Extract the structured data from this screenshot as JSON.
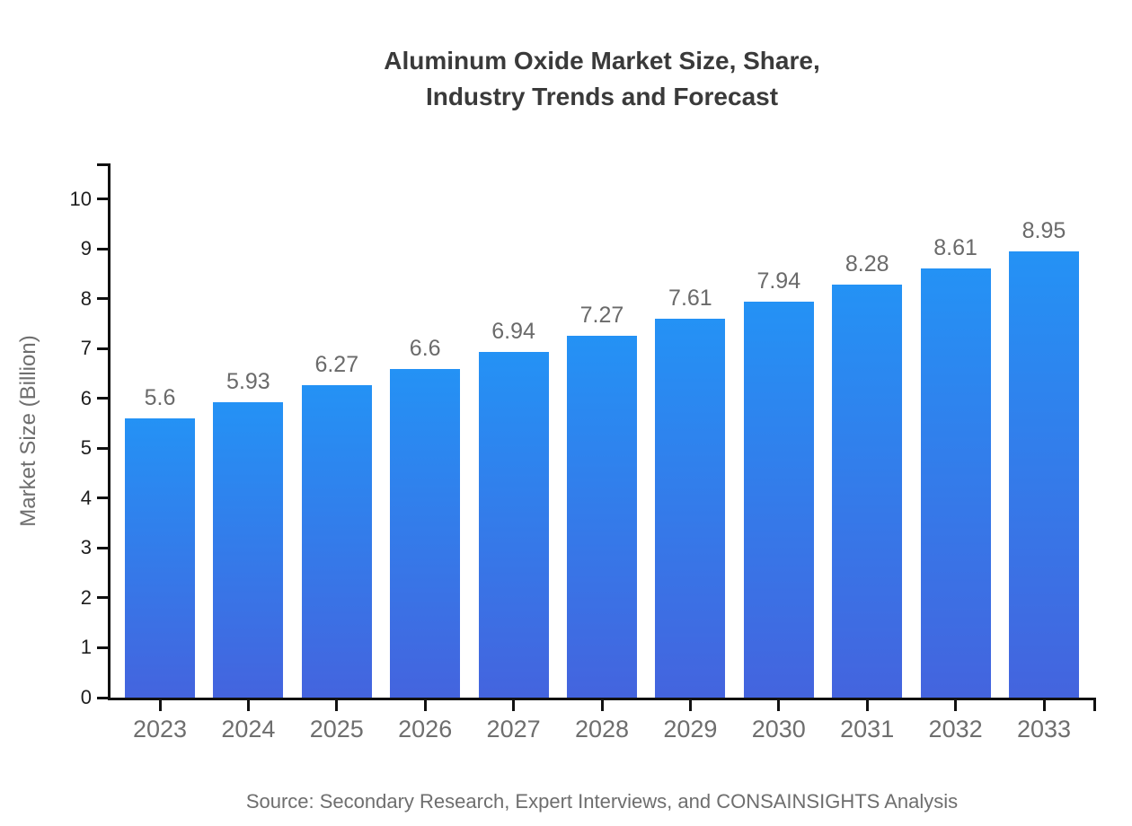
{
  "chart_data": {
    "type": "bar",
    "title": "Aluminum Oxide Market Size, Share, Industry Trends and Forecast",
    "title_lines": [
      "Aluminum Oxide Market Size, Share,",
      "Industry Trends and Forecast"
    ],
    "xlabel": "",
    "ylabel": "Market Size (Billion)",
    "categories": [
      "2023",
      "2024",
      "2025",
      "2026",
      "2027",
      "2028",
      "2029",
      "2030",
      "2031",
      "2032",
      "2033"
    ],
    "values": [
      5.6,
      5.93,
      6.27,
      6.6,
      6.94,
      7.27,
      7.61,
      7.94,
      8.28,
      8.61,
      8.95
    ],
    "value_labels": [
      "5.6",
      "5.93",
      "6.27",
      "6.6",
      "6.94",
      "7.27",
      "7.61",
      "7.94",
      "8.28",
      "8.61",
      "8.95"
    ],
    "yticks": [
      0,
      1,
      2,
      3,
      4,
      5,
      6,
      7,
      8,
      9,
      10
    ],
    "ylim": [
      0,
      10.7
    ],
    "grid": false,
    "legend": false,
    "source": "Source: Secondary Research, Expert Interviews, and CONSAINSIGHTS Analysis",
    "colors": {
      "bar_gradient_top": "#2492f5",
      "bar_gradient_bottom": "#4464de",
      "axis": "#111111",
      "title_text": "#3a3a3a",
      "axis_label_text": "#6e6e6e",
      "ytick_text": "#1d1d1d",
      "value_label_text": "#6a6a6a",
      "background": "#ffffff"
    }
  }
}
